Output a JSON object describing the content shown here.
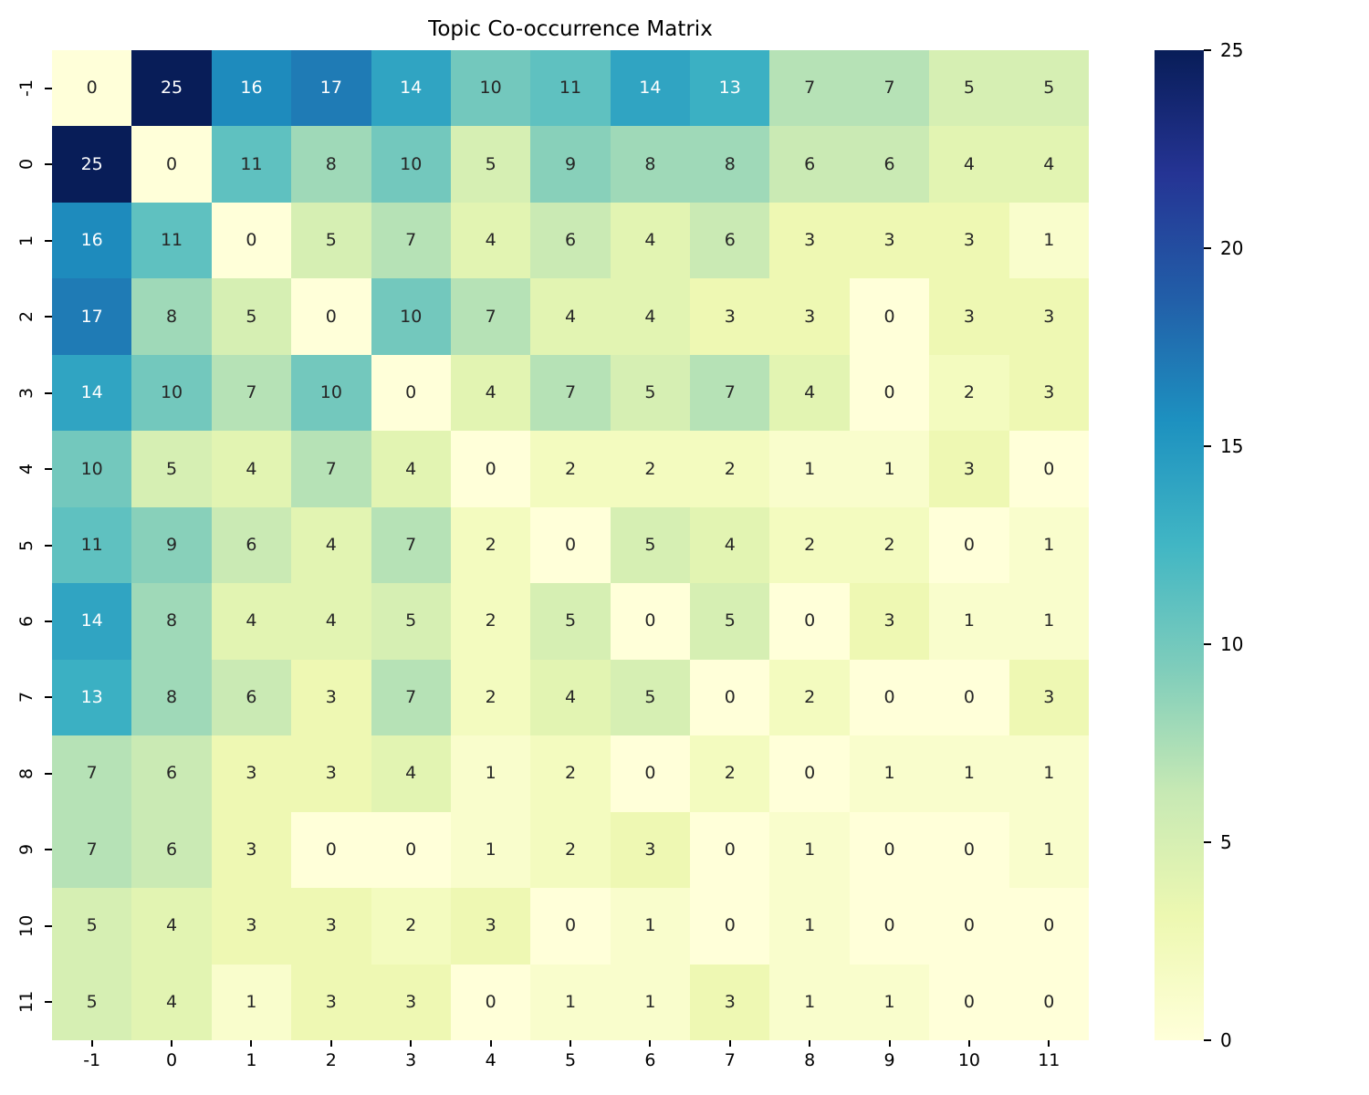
{
  "title": "Topic Co-occurrence Matrix",
  "chart_data": {
    "type": "heatmap",
    "title": "Topic Co-occurrence Matrix",
    "x_tick_labels": [
      "-1",
      "0",
      "1",
      "2",
      "3",
      "4",
      "5",
      "6",
      "7",
      "8",
      "9",
      "10",
      "11"
    ],
    "y_tick_labels": [
      "-1",
      "0",
      "1",
      "2",
      "3",
      "4",
      "5",
      "6",
      "7",
      "8",
      "9",
      "10",
      "11"
    ],
    "matrix": [
      [
        0,
        25,
        16,
        17,
        14,
        10,
        11,
        14,
        13,
        7,
        7,
        5,
        5
      ],
      [
        25,
        0,
        11,
        8,
        10,
        5,
        9,
        8,
        8,
        6,
        6,
        4,
        4
      ],
      [
        16,
        11,
        0,
        5,
        7,
        4,
        6,
        4,
        6,
        3,
        3,
        3,
        1
      ],
      [
        17,
        8,
        5,
        0,
        10,
        7,
        4,
        4,
        3,
        3,
        0,
        3,
        3
      ],
      [
        14,
        10,
        7,
        10,
        0,
        4,
        7,
        5,
        7,
        4,
        0,
        2,
        3
      ],
      [
        10,
        5,
        4,
        7,
        4,
        0,
        2,
        2,
        2,
        1,
        1,
        3,
        0
      ],
      [
        11,
        9,
        6,
        4,
        7,
        2,
        0,
        5,
        4,
        2,
        2,
        0,
        1
      ],
      [
        14,
        8,
        4,
        4,
        5,
        2,
        5,
        0,
        5,
        0,
        3,
        1,
        1
      ],
      [
        13,
        8,
        6,
        3,
        7,
        2,
        4,
        5,
        0,
        2,
        0,
        0,
        3
      ],
      [
        7,
        6,
        3,
        3,
        4,
        1,
        2,
        0,
        2,
        0,
        1,
        1,
        1
      ],
      [
        7,
        6,
        3,
        0,
        0,
        1,
        2,
        3,
        0,
        1,
        0,
        0,
        1
      ],
      [
        5,
        4,
        3,
        3,
        2,
        3,
        0,
        1,
        0,
        1,
        0,
        0,
        0
      ],
      [
        5,
        4,
        1,
        3,
        3,
        0,
        1,
        1,
        3,
        1,
        1,
        0,
        0
      ]
    ],
    "vmin": 0,
    "vmax": 25,
    "annotated": true,
    "grid": false,
    "colormap": "YlGnBu",
    "colormap_stops": [
      "#ffffd9",
      "#edf8b1",
      "#c7e9b4",
      "#7fcdbb",
      "#41b6c4",
      "#1d91c0",
      "#225ea8",
      "#253494",
      "#081d58"
    ],
    "colorbar_position": "right",
    "colorbar_tick_labels": [
      "0",
      "5",
      "10",
      "15",
      "20",
      "25"
    ],
    "colorbar_tick_values": [
      0,
      5,
      10,
      15,
      20,
      25
    ],
    "annotation_color_dark": "#262626",
    "annotation_color_light": "#ffffff",
    "background_color": "#ffffff"
  }
}
